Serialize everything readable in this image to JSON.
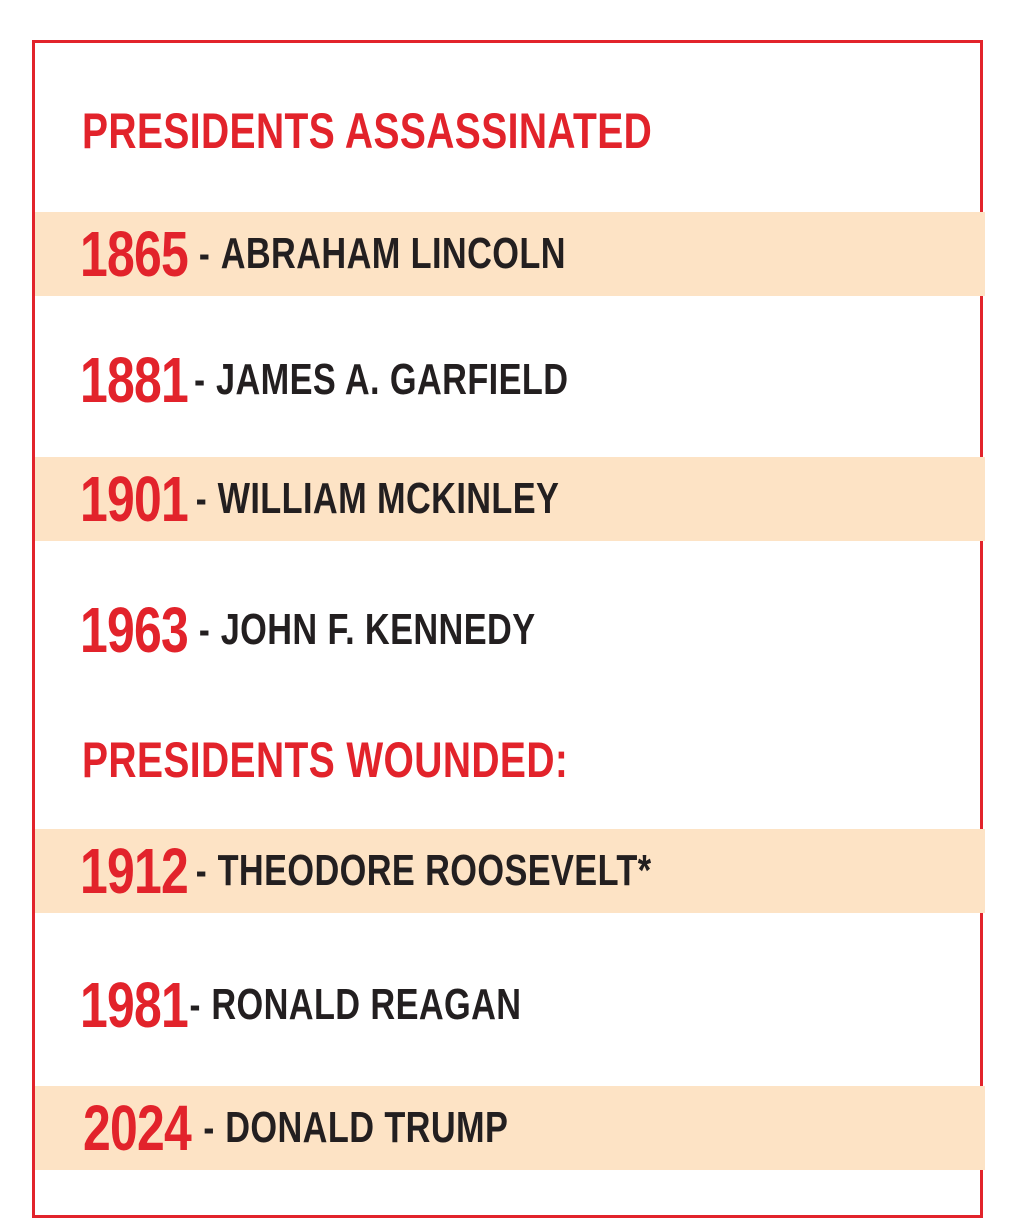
{
  "headings": {
    "assassinated": "PRESIDENTS ASSASSINATED",
    "wounded": "PRESIDENTS WOUNDED:"
  },
  "assassinated": [
    {
      "year": "1865",
      "separator": "-",
      "name": "ABRAHAM LINCOLN"
    },
    {
      "year": "1881",
      "separator": "-",
      "name": "JAMES A. GARFIELD"
    },
    {
      "year": "1901",
      "separator": "-",
      "name": "WILLIAM MCKINLEY"
    },
    {
      "year": "1963",
      "separator": "-",
      "name": "JOHN F. KENNEDY"
    }
  ],
  "wounded": [
    {
      "year": "1912",
      "separator": "-",
      "name": "THEODORE ROOSEVELT*"
    },
    {
      "year": "1981",
      "separator": "-",
      "name": "RONALD REAGAN"
    },
    {
      "year": "2024",
      "separator": "-",
      "name": "DONALD TRUMP"
    }
  ],
  "colors": {
    "accent_red": "#e2232b",
    "row_shade": "#fde3c5",
    "text_dark": "#231f20",
    "background": "#ffffff"
  }
}
